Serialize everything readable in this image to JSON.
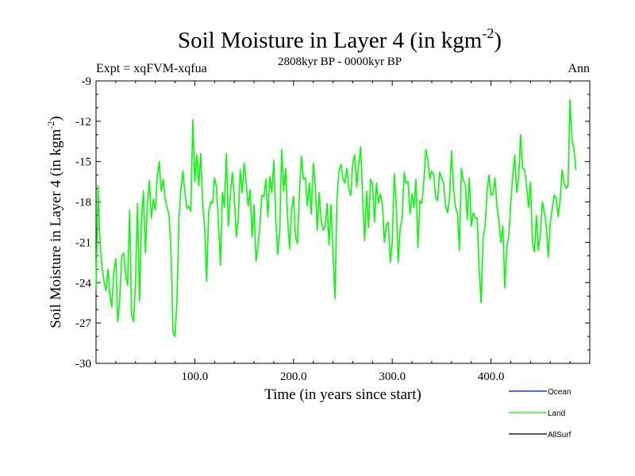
{
  "chart_data": {
    "type": "line",
    "title": "Soil Moisture in Layer 4 (in kgm",
    "title_sup": "-2",
    "title_end": ")",
    "subtitle": "2808kyr BP - 0000kyr BP",
    "expt_label": "Expt = xqFVM-xqfua",
    "season_label": "Ann",
    "xlabel": "Time (in years since start)",
    "ylabel": "Soil Moisture in Layer 4 (in kgm",
    "ylabel_sup": "-2",
    "ylabel_end": ")",
    "xlim": [
      0,
      500
    ],
    "ylim": [
      -30,
      -9
    ],
    "x_ticks": [
      100,
      200,
      300,
      400
    ],
    "x_tick_labels": [
      "100.0",
      "200.0",
      "300.0",
      "400.0"
    ],
    "y_ticks": [
      -9,
      -12,
      -15,
      -18,
      -21,
      -24,
      -27,
      -30
    ],
    "y_tick_labels": [
      "-9",
      "-12",
      "-15",
      "-18",
      "-21",
      "-24",
      "-27",
      "-30"
    ],
    "legend": [
      {
        "name": "Ocean",
        "color": "#0000ff"
      },
      {
        "name": "Land",
        "color": "#00ff00"
      },
      {
        "name": "AllSurf",
        "color": "#000000"
      }
    ],
    "series": [
      {
        "name": "Land",
        "color": "#00ff00",
        "x_start": 0,
        "x_step": 2,
        "values": [
          -24.5,
          -16.8,
          -21,
          -22.8,
          -23.9,
          -24.6,
          -23,
          -24.9,
          -25.8,
          -23.2,
          -22.2,
          -26.9,
          -25.3,
          -22,
          -21.8,
          -23.4,
          -24.2,
          -18.6,
          -26.4,
          -26.9,
          -24,
          -18.1,
          -25.4,
          -19.3,
          -17.2,
          -21.8,
          -18.1,
          -16.4,
          -19.2,
          -17.8,
          -18.6,
          -16.1,
          -15,
          -17.2,
          -16.3,
          -17.8,
          -18.4,
          -19,
          -21.9,
          -27.7,
          -28,
          -25.2,
          -19.2,
          -17,
          -15.7,
          -17.3,
          -18.5,
          -18.3,
          -18.7,
          -11.9,
          -16.5,
          -14.5,
          -16.8,
          -14.4,
          -18.2,
          -19.9,
          -23.9,
          -18.8,
          -18,
          -18.1,
          -16.2,
          -16.9,
          -19.6,
          -22.7,
          -17.3,
          -18.4,
          -14.4,
          -19.8,
          -17.5,
          -15.8,
          -17.6,
          -20.6,
          -19.3,
          -15.6,
          -17.3,
          -15.1,
          -16.5,
          -18.3,
          -17.1,
          -20.6,
          -18.2,
          -22.4,
          -21.3,
          -19.7,
          -17.5,
          -17.6,
          -16.3,
          -19.1,
          -16.1,
          -17.3,
          -14.9,
          -19.2,
          -21.9,
          -20.2,
          -14.1,
          -17.2,
          -15.5,
          -19.2,
          -21.5,
          -18.6,
          -17.6,
          -20.6,
          -21.1,
          -17.3,
          -14.6,
          -16.3,
          -16.2,
          -18.3,
          -16.6,
          -18.9,
          -15.1,
          -16.8,
          -20.1,
          -17.3,
          -19.3,
          -20.1,
          -19.8,
          -18.1,
          -21.2,
          -18.2,
          -21.8,
          -25.2,
          -17.8,
          -15.7,
          -15.2,
          -16.2,
          -16.6,
          -15.5,
          -17,
          -17.5,
          -15.1,
          -14.5,
          -16.9,
          -15.2,
          -13.9,
          -17.6,
          -20.9,
          -17.2,
          -19.9,
          -16.3,
          -16.7,
          -19.5,
          -16.6,
          -18.1,
          -17.4,
          -18.2,
          -21,
          -19.7,
          -19.5,
          -22.5,
          -21,
          -15.9,
          -18.1,
          -22.5,
          -20,
          -19.2,
          -15.8,
          -16.6,
          -16.5,
          -18.9,
          -17.4,
          -18.4,
          -16.3,
          -21.4,
          -17.9,
          -18.1,
          -16.4,
          -14.1,
          -14.9,
          -16.3,
          -15.7,
          -16,
          -17.7,
          -17.9,
          -15.8,
          -16.2,
          -16.6,
          -18.3,
          -18.8,
          -17.7,
          -14.2,
          -16.9,
          -18.4,
          -18.8,
          -21.6,
          -15.5,
          -16.4,
          -16.7,
          -19.3,
          -16.2,
          -19.8,
          -18.8,
          -19.2,
          -19.2,
          -23.1,
          -25.5,
          -20.7,
          -19.8,
          -17.2,
          -16,
          -17.5,
          -17.4,
          -16.2,
          -18.3,
          -19.4,
          -21,
          -19.8,
          -24.4,
          -21.4,
          -20.5,
          -18.1,
          -16,
          -14.5,
          -17.3,
          -16.2,
          -13,
          -15.5,
          -15.6,
          -16.8,
          -18.4,
          -16.5,
          -21,
          -21.7,
          -19,
          -21.6,
          -20.4,
          -18,
          -18.7,
          -19.8,
          -22.1,
          -19.6,
          -18.5,
          -17.5,
          -17.7,
          -19.1,
          -17.9,
          -15.6,
          -16.6,
          -17,
          -16.8,
          -10.4,
          -13.4,
          -14,
          -15.6
        ]
      }
    ]
  }
}
